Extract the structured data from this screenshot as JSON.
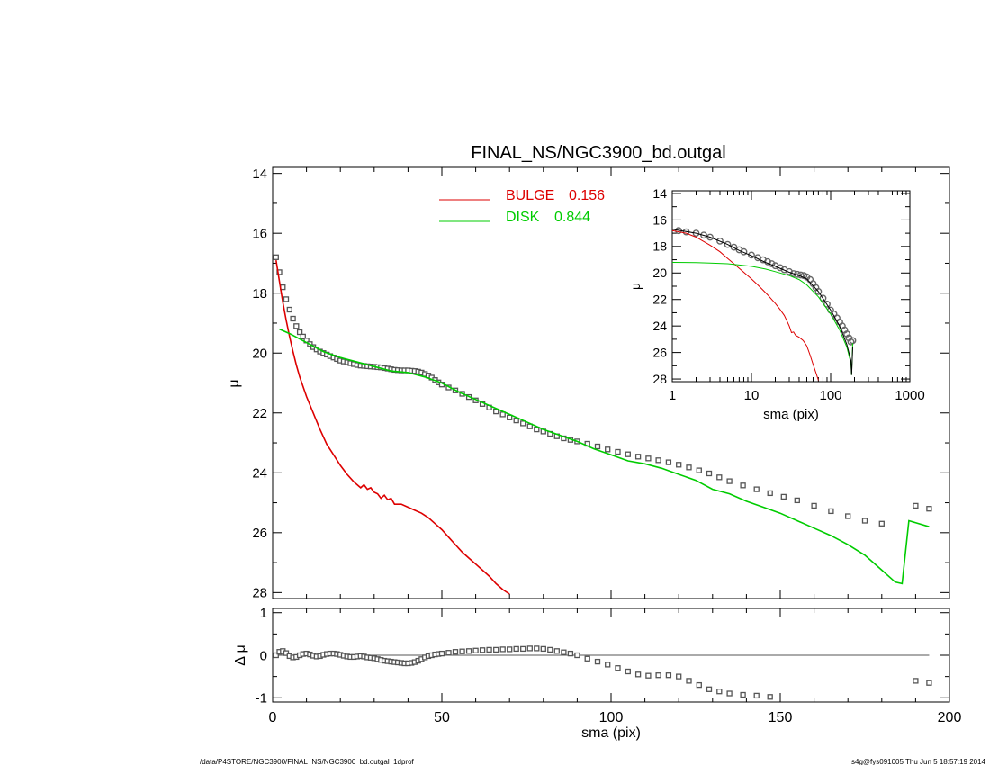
{
  "footer": {
    "left": "/data/P4STORE/NGC3900/FINAL_NS/NGC3900_bd.outgal_1dprof",
    "right": "s4g@fys091005  Thu Jun  5 18:57:19 2014"
  },
  "chart_data": [
    {
      "id": "main",
      "type": "line",
      "title": "FINAL_NS/NGC3900_bd.outgal",
      "xlabel": "",
      "ylabel": "μ",
      "xlim": [
        0,
        200
      ],
      "ylim": [
        28.2,
        13.8
      ],
      "y_inverted": true,
      "yticks": [
        14,
        16,
        18,
        20,
        22,
        24,
        26,
        28
      ],
      "legend": {
        "placement": "top-center",
        "entries": [
          {
            "label": "BULGE",
            "value": "0.156",
            "color": "#dd0000"
          },
          {
            "label": "DISK",
            "value": "0.844",
            "color": "#00cc00"
          }
        ]
      },
      "series": [
        {
          "name": "data",
          "style": "squares",
          "color": "#555555",
          "x": [
            1,
            2,
            3,
            4,
            5,
            6,
            7,
            8,
            9,
            10,
            11,
            12,
            13,
            14,
            15,
            16,
            17,
            18,
            19,
            20,
            21,
            22,
            23,
            24,
            25,
            26,
            27,
            28,
            29,
            30,
            31,
            32,
            33,
            34,
            35,
            36,
            37,
            38,
            39,
            40,
            41,
            42,
            43,
            44,
            45,
            46,
            47,
            48,
            49,
            50,
            52,
            54,
            56,
            58,
            60,
            62,
            64,
            66,
            68,
            70,
            72,
            74,
            76,
            78,
            80,
            82,
            84,
            86,
            88,
            90,
            93,
            96,
            99,
            102,
            105,
            108,
            111,
            114,
            117,
            120,
            123,
            126,
            129,
            132,
            135,
            139,
            143,
            147,
            151,
            155,
            160,
            165,
            170,
            175,
            180,
            190,
            194
          ],
          "y": [
            16.8,
            17.3,
            17.8,
            18.2,
            18.55,
            18.85,
            19.1,
            19.3,
            19.45,
            19.58,
            19.7,
            19.8,
            19.88,
            19.95,
            20.0,
            20.05,
            20.1,
            20.15,
            20.2,
            20.25,
            20.28,
            20.31,
            20.34,
            20.37,
            20.4,
            20.42,
            20.43,
            20.44,
            20.45,
            20.46,
            20.47,
            20.48,
            20.5,
            20.52,
            20.54,
            20.56,
            20.57,
            20.58,
            20.58,
            20.58,
            20.59,
            20.6,
            20.62,
            20.65,
            20.7,
            20.75,
            20.82,
            20.9,
            20.98,
            21.05,
            21.15,
            21.25,
            21.36,
            21.47,
            21.58,
            21.7,
            21.82,
            21.95,
            22.05,
            22.15,
            22.25,
            22.35,
            22.45,
            22.55,
            22.62,
            22.7,
            22.78,
            22.85,
            22.9,
            22.95,
            23.03,
            23.12,
            23.22,
            23.3,
            23.38,
            23.46,
            23.52,
            23.58,
            23.65,
            23.73,
            23.82,
            23.92,
            24.02,
            24.15,
            24.28,
            24.42,
            24.55,
            24.68,
            24.8,
            24.92,
            25.1,
            25.28,
            25.45,
            25.6,
            25.7,
            25.1,
            25.2
          ]
        },
        {
          "name": "BULGE",
          "style": "line",
          "color": "#dd0000",
          "x": [
            1,
            2,
            3,
            4,
            5,
            6,
            7,
            8,
            10,
            12,
            14,
            16,
            18,
            20,
            22,
            24,
            26,
            27,
            28,
            29,
            30,
            31,
            32,
            33,
            34,
            35,
            36,
            38,
            40,
            42,
            44,
            46,
            48,
            50,
            52,
            54,
            56,
            58,
            60,
            62,
            64,
            66,
            68,
            70
          ],
          "y": [
            16.9,
            17.6,
            18.3,
            18.9,
            19.45,
            19.95,
            20.4,
            20.8,
            21.45,
            22.0,
            22.55,
            23.05,
            23.4,
            23.75,
            24.05,
            24.3,
            24.5,
            24.4,
            24.55,
            24.5,
            24.65,
            24.7,
            24.85,
            24.75,
            24.9,
            24.85,
            25.05,
            25.05,
            25.15,
            25.25,
            25.35,
            25.5,
            25.7,
            25.9,
            26.15,
            26.4,
            26.65,
            26.85,
            27.05,
            27.25,
            27.45,
            27.7,
            27.9,
            28.05
          ]
        },
        {
          "name": "DISK",
          "style": "line",
          "color": "#00cc00",
          "x": [
            2,
            5,
            10,
            15,
            20,
            25,
            30,
            35,
            40,
            45,
            50,
            55,
            60,
            65,
            70,
            75,
            80,
            85,
            90,
            95,
            100,
            105,
            110,
            115,
            120,
            125,
            130,
            135,
            140,
            145,
            150,
            155,
            160,
            165,
            170,
            175,
            180,
            184,
            186,
            188,
            194
          ],
          "y": [
            19.2,
            19.35,
            19.65,
            19.95,
            20.15,
            20.3,
            20.45,
            20.6,
            20.65,
            20.8,
            21.0,
            21.3,
            21.55,
            21.8,
            22.05,
            22.3,
            22.55,
            22.75,
            22.95,
            23.2,
            23.4,
            23.6,
            23.7,
            23.85,
            24.05,
            24.25,
            24.55,
            24.7,
            24.95,
            25.15,
            25.35,
            25.6,
            25.85,
            26.1,
            26.4,
            26.75,
            27.25,
            27.65,
            27.7,
            25.6,
            25.8
          ]
        }
      ]
    },
    {
      "id": "residual",
      "type": "scatter",
      "xlabel": "sma (pix)",
      "ylabel": "Δ μ",
      "xlim": [
        0,
        200
      ],
      "ylim": [
        -1.1,
        1.1
      ],
      "xticks": [
        0,
        50,
        100,
        150,
        200
      ],
      "yticks": [
        -1,
        0,
        1
      ],
      "zero_line_to_x": 194,
      "series": [
        {
          "name": "residual",
          "style": "squares",
          "color": "#555555",
          "x": [
            1,
            2,
            3,
            4,
            5,
            6,
            7,
            8,
            9,
            10,
            11,
            12,
            13,
            14,
            15,
            16,
            17,
            18,
            19,
            20,
            21,
            22,
            23,
            24,
            25,
            26,
            27,
            28,
            29,
            30,
            31,
            32,
            33,
            34,
            35,
            36,
            37,
            38,
            39,
            40,
            41,
            42,
            43,
            44,
            45,
            46,
            47,
            48,
            49,
            50,
            52,
            54,
            56,
            58,
            60,
            62,
            64,
            66,
            68,
            70,
            72,
            74,
            76,
            78,
            80,
            82,
            84,
            86,
            88,
            90,
            93,
            96,
            99,
            102,
            105,
            108,
            111,
            114,
            117,
            120,
            123,
            126,
            129,
            132,
            135,
            139,
            143,
            147,
            190,
            194
          ],
          "y": [
            0.0,
            0.08,
            0.1,
            0.05,
            -0.02,
            -0.05,
            -0.04,
            0.0,
            0.03,
            0.04,
            0.02,
            -0.01,
            -0.03,
            -0.02,
            0.01,
            0.03,
            0.04,
            0.04,
            0.03,
            0.01,
            -0.01,
            -0.03,
            -0.04,
            -0.04,
            -0.03,
            -0.02,
            -0.03,
            -0.05,
            -0.06,
            -0.07,
            -0.09,
            -0.11,
            -0.13,
            -0.14,
            -0.15,
            -0.16,
            -0.17,
            -0.18,
            -0.19,
            -0.19,
            -0.18,
            -0.16,
            -0.13,
            -0.09,
            -0.05,
            -0.02,
            0.0,
            0.02,
            0.03,
            0.04,
            0.06,
            0.08,
            0.09,
            0.1,
            0.11,
            0.12,
            0.13,
            0.13,
            0.14,
            0.14,
            0.15,
            0.15,
            0.16,
            0.16,
            0.15,
            0.13,
            0.1,
            0.07,
            0.04,
            0.0,
            -0.08,
            -0.15,
            -0.22,
            -0.3,
            -0.38,
            -0.45,
            -0.48,
            -0.47,
            -0.47,
            -0.5,
            -0.6,
            -0.7,
            -0.8,
            -0.85,
            -0.9,
            -0.93,
            -0.95,
            -0.98,
            -0.6,
            -0.65
          ]
        }
      ]
    },
    {
      "id": "inset",
      "type": "line",
      "xlabel": "sma (pix)",
      "ylabel": "μ",
      "x_scale": "log",
      "xlim": [
        1,
        1000
      ],
      "ylim": [
        28.2,
        13.8
      ],
      "y_inverted": true,
      "xticks": [
        1,
        10,
        100,
        1000
      ],
      "yticks": [
        14,
        16,
        18,
        20,
        22,
        24,
        26,
        28
      ],
      "series": [
        {
          "name": "data",
          "style": "circles",
          "color": "#666666",
          "x": [
            1.2,
            1.5,
            2,
            2.5,
            3,
            4,
            5,
            6,
            7,
            8,
            10,
            12,
            14,
            16,
            18,
            20,
            23,
            26,
            30,
            34,
            38,
            42,
            46,
            50,
            55,
            60,
            65,
            70,
            80,
            90,
            100,
            110,
            120,
            130,
            140,
            150,
            160,
            170,
            180,
            190
          ],
          "y": [
            16.8,
            16.9,
            17.0,
            17.15,
            17.3,
            17.6,
            17.85,
            18.05,
            18.25,
            18.4,
            18.65,
            18.85,
            19.0,
            19.15,
            19.3,
            19.45,
            19.6,
            19.75,
            19.9,
            20.05,
            20.1,
            20.15,
            20.2,
            20.3,
            20.5,
            20.8,
            21.1,
            21.4,
            21.9,
            22.35,
            22.8,
            23.1,
            23.4,
            23.7,
            24.0,
            24.3,
            24.6,
            24.9,
            25.2,
            25.1
          ]
        },
        {
          "name": "BULGE",
          "style": "line",
          "color": "#dd0000",
          "x": [
            1,
            1.5,
            2,
            3,
            4,
            5,
            6,
            7,
            8,
            10,
            12,
            14,
            16,
            18,
            20,
            23,
            26,
            28,
            30,
            32,
            34,
            36,
            40,
            45,
            50,
            55,
            60,
            65,
            70
          ],
          "y": [
            16.8,
            17.0,
            17.3,
            17.9,
            18.4,
            18.9,
            19.3,
            19.65,
            19.95,
            20.45,
            20.9,
            21.3,
            21.65,
            22.0,
            22.3,
            22.75,
            23.2,
            23.6,
            24.0,
            24.5,
            24.45,
            24.7,
            24.85,
            25.1,
            25.5,
            26.2,
            26.9,
            27.5,
            28.1
          ]
        },
        {
          "name": "DISK",
          "style": "line",
          "color": "#00cc00",
          "x": [
            1,
            2,
            3,
            5,
            7,
            10,
            15,
            20,
            30,
            40,
            50,
            70,
            100,
            130,
            160,
            180,
            184,
            190
          ],
          "y": [
            19.2,
            19.22,
            19.25,
            19.3,
            19.4,
            19.5,
            19.7,
            19.9,
            20.2,
            20.5,
            20.9,
            21.8,
            23.1,
            24.3,
            25.6,
            26.8,
            27.7,
            25.3
          ]
        },
        {
          "name": "model",
          "style": "line",
          "color": "#000000",
          "x": [
            1,
            2,
            3,
            5,
            7,
            10,
            15,
            20,
            30,
            40,
            50,
            70,
            100,
            130,
            160,
            180,
            184,
            190
          ],
          "y": [
            16.7,
            17.0,
            17.3,
            17.85,
            18.3,
            18.7,
            19.2,
            19.5,
            19.95,
            20.2,
            20.45,
            21.4,
            22.8,
            24.0,
            25.4,
            26.6,
            27.7,
            25.6
          ]
        }
      ]
    }
  ]
}
